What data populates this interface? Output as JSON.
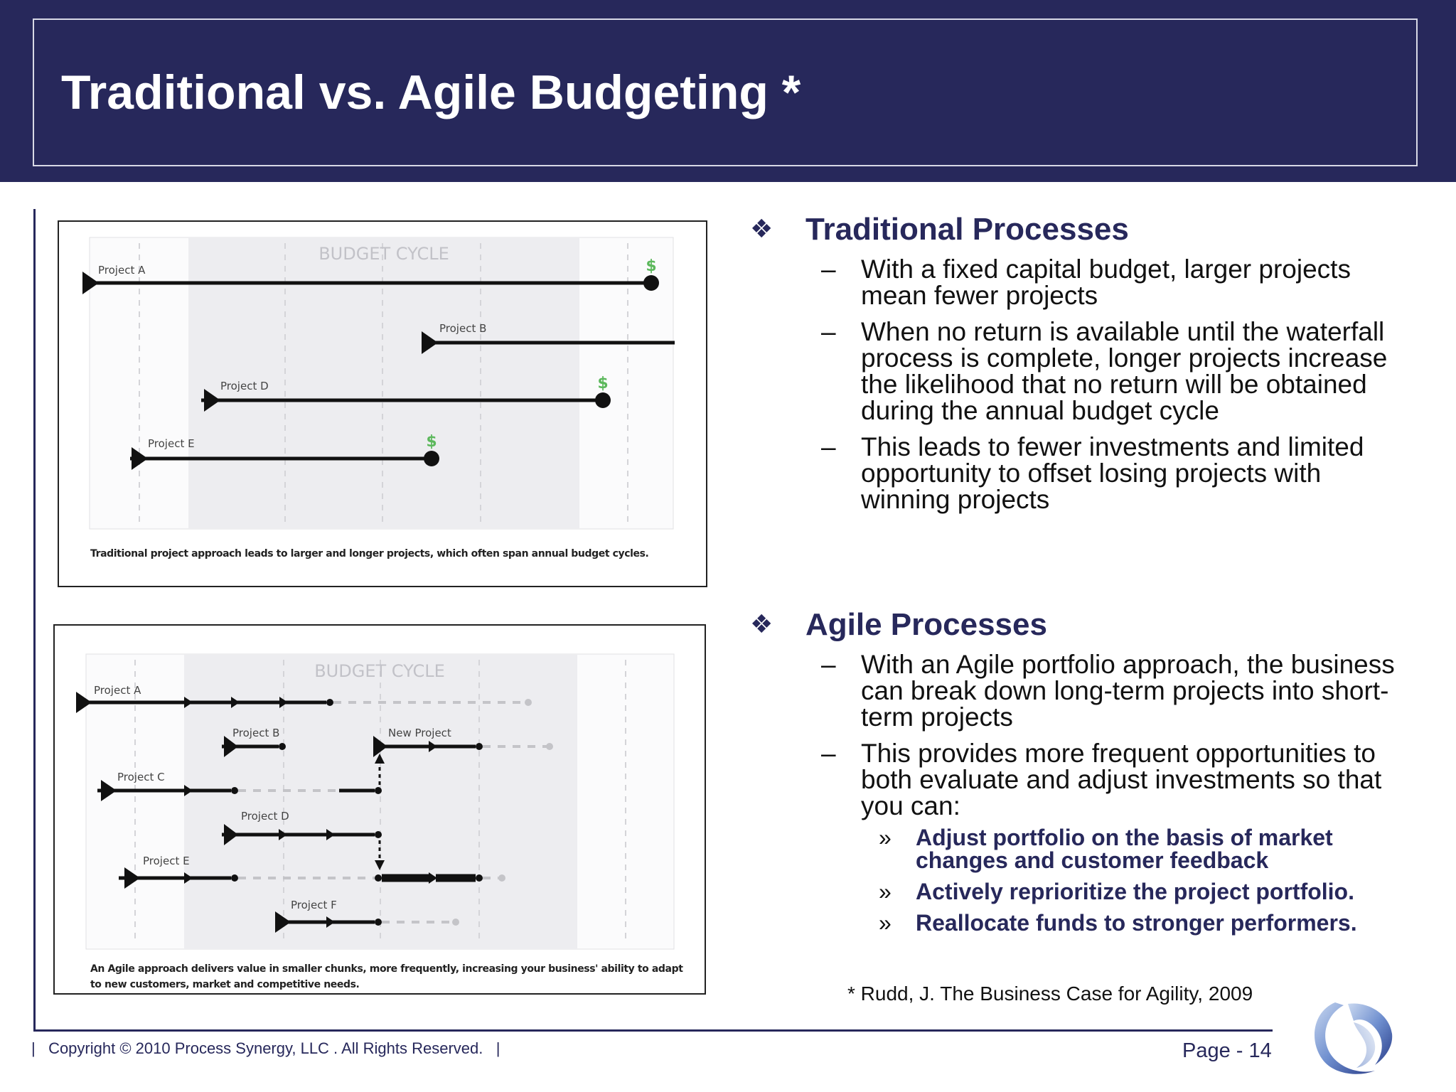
{
  "slide": {
    "title": "Traditional vs. Agile Budgeting *",
    "footnote": "* Rudd, J. The Business Case for Agility, 2009",
    "copyright": "Copyright © 2010 Process Synergy, LLC . All Rights Reserved.",
    "footer_separator": "|",
    "page": "Page - 14"
  },
  "traditional": {
    "bullet": "❖",
    "heading": "Traditional Processes",
    "points": [
      "With a fixed capital budget, larger projects mean fewer projects",
      "When no return is available until the waterfall process is complete, longer projects increase the likelihood that no return will be obtained during the annual budget cycle",
      "This leads to fewer investments and limited opportunity to offset losing projects with winning projects"
    ]
  },
  "agile": {
    "bullet": "❖",
    "heading": "Agile Processes",
    "points": [
      "With an Agile portfolio approach, the business can break down long-term projects into short-term projects",
      "This provides more frequent opportunities to both evaluate and adjust investments so that you can:"
    ],
    "subpoints": [
      "Adjust portfolio on the basis of market changes and customer feedback",
      "Actively reprioritize the project portfolio.",
      "Reallocate funds to stronger performers."
    ]
  },
  "markers": {
    "dash": "–",
    "chevron": "»",
    "return": "$"
  },
  "figure_traditional": {
    "band_label": "BUDGET CYCLE",
    "caption": "Traditional project approach leads to larger and longer projects, which often span annual budget cycles.",
    "projects": [
      {
        "label": "Project A",
        "has_return": true
      },
      {
        "label": "Project B",
        "has_return": false
      },
      {
        "label": "Project D",
        "has_return": true
      },
      {
        "label": "Project E",
        "has_return": true
      }
    ]
  },
  "figure_agile": {
    "band_label": "BUDGET CYCLE",
    "caption": "An Agile approach delivers value in smaller chunks, more frequently, increasing your business' ability to adapt to new customers, market and competitive needs.",
    "projects": [
      {
        "label": "Project A"
      },
      {
        "label": "Project B"
      },
      {
        "label": "New Project"
      },
      {
        "label": "Project C"
      },
      {
        "label": "Project D"
      },
      {
        "label": "Project E"
      },
      {
        "label": "Project F"
      }
    ]
  },
  "colors": {
    "header": "#27285b",
    "heading_text": "#27285b",
    "return_marker": "#5cb85c",
    "budget_band": "#ededf0"
  }
}
